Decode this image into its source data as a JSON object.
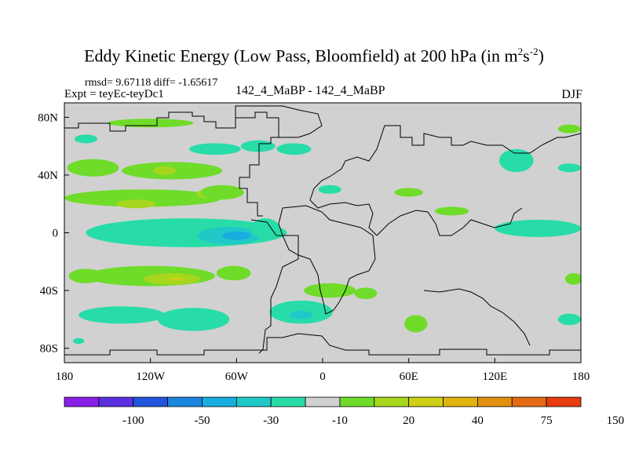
{
  "header": {
    "title": "Eddy Kinetic Energy (Low Pass, Bloomfield) at 200 hPa (in m",
    "title_sup1": "2",
    "title_mid": "s",
    "title_sup2": "-2",
    "title_end": ")",
    "stats": "rmsd= 9.67118 diff= -1.65617",
    "expt": "Expt = teyEc-teyDc1",
    "center_label": "142_4_MaBP - 142_4_MaBP",
    "season": "DJF"
  },
  "colors": {
    "land_background": "#d1d1d1",
    "outline": "#000000"
  },
  "chart_data": {
    "type": "heatmap",
    "title": "Eddy Kinetic Energy (Low Pass, Bloomfield) at 200 hPa (in m2s-2)",
    "xlabel": "",
    "ylabel": "",
    "xlim": [
      -180,
      180
    ],
    "ylim": [
      -90,
      90
    ],
    "x_ticks": [
      {
        "value": -180,
        "label": "180"
      },
      {
        "value": -120,
        "label": "120W"
      },
      {
        "value": -60,
        "label": "60W"
      },
      {
        "value": 0,
        "label": "0"
      },
      {
        "value": 60,
        "label": "60E"
      },
      {
        "value": 120,
        "label": "120E"
      },
      {
        "value": 180,
        "label": "180"
      }
    ],
    "y_ticks": [
      {
        "value": 80,
        "label": "80N"
      },
      {
        "value": 40,
        "label": "40N"
      },
      {
        "value": 0,
        "label": "0"
      },
      {
        "value": -40,
        "label": "40S"
      },
      {
        "value": -80,
        "label": "80S"
      }
    ],
    "colorbar": {
      "labels": [
        "-100",
        "-50",
        "-30",
        "-10",
        "20",
        "40",
        "75",
        "150"
      ],
      "colors": [
        "#8a20e8",
        "#5a30e0",
        "#2255dd",
        "#1a86e0",
        "#18aee0",
        "#20c8c8",
        "#28dca8",
        "#d1d1d1",
        "#6fdc2a",
        "#a6d61e",
        "#cfcf14",
        "#e0b40c",
        "#e49010",
        "#e46a14",
        "#e63c10"
      ]
    },
    "regions": [
      {
        "cat": 8,
        "lon": -120,
        "lat": 76,
        "rlon": 30,
        "rlat": 3
      },
      {
        "cat": 6,
        "lon": -165,
        "lat": 65,
        "rlon": 8,
        "rlat": 3
      },
      {
        "cat": 8,
        "lon": -160,
        "lat": 45,
        "rlon": 18,
        "rlat": 6
      },
      {
        "cat": 8,
        "lon": -105,
        "lat": 43,
        "rlon": 35,
        "rlat": 6
      },
      {
        "cat": 9,
        "lon": -110,
        "lat": 43,
        "rlon": 8,
        "rlat": 3
      },
      {
        "cat": 6,
        "lon": -75,
        "lat": 58,
        "rlon": 18,
        "rlat": 4
      },
      {
        "cat": 6,
        "lon": -45,
        "lat": 60,
        "rlon": 12,
        "rlat": 4
      },
      {
        "cat": 6,
        "lon": -20,
        "lat": 58,
        "rlon": 12,
        "rlat": 4
      },
      {
        "cat": 8,
        "lon": -125,
        "lat": 24,
        "rlon": 55,
        "rlat": 6
      },
      {
        "cat": 9,
        "lon": -130,
        "lat": 20,
        "rlon": 14,
        "rlat": 3
      },
      {
        "cat": 9,
        "lon": -80,
        "lat": 27,
        "rlon": 8,
        "rlat": 3
      },
      {
        "cat": 8,
        "lon": -70,
        "lat": 28,
        "rlon": 15,
        "rlat": 5
      },
      {
        "cat": 6,
        "lon": -95,
        "lat": 0,
        "rlon": 70,
        "rlat": 10
      },
      {
        "cat": 5,
        "lon": -65,
        "lat": -2,
        "rlon": 22,
        "rlat": 6
      },
      {
        "cat": 4,
        "lon": -60,
        "lat": -2,
        "rlon": 10,
        "rlat": 3
      },
      {
        "cat": 6,
        "lon": -40,
        "lat": 3,
        "rlon": 10,
        "rlat": 7
      },
      {
        "cat": 8,
        "lon": -120,
        "lat": -30,
        "rlon": 45,
        "rlat": 7
      },
      {
        "cat": 9,
        "lon": -105,
        "lat": -32,
        "rlon": 20,
        "rlat": 4
      },
      {
        "cat": 10,
        "lon": -102,
        "lat": -32,
        "rlon": 5,
        "rlat": 1
      },
      {
        "cat": 8,
        "lon": -165,
        "lat": -30,
        "rlon": 12,
        "rlat": 5
      },
      {
        "cat": 8,
        "lon": -62,
        "lat": -28,
        "rlon": 12,
        "rlat": 5
      },
      {
        "cat": 6,
        "lon": -140,
        "lat": -57,
        "rlon": 30,
        "rlat": 6
      },
      {
        "cat": 6,
        "lon": -90,
        "lat": -60,
        "rlon": 25,
        "rlat": 8
      },
      {
        "cat": 6,
        "lon": -15,
        "lat": -55,
        "rlon": 22,
        "rlat": 8
      },
      {
        "cat": 5,
        "lon": -15,
        "lat": -57,
        "rlon": 8,
        "rlat": 3
      },
      {
        "cat": 8,
        "lon": 5,
        "lat": -40,
        "rlon": 18,
        "rlat": 5
      },
      {
        "cat": 8,
        "lon": 30,
        "lat": -42,
        "rlon": 8,
        "rlat": 4
      },
      {
        "cat": 8,
        "lon": 65,
        "lat": -63,
        "rlon": 8,
        "rlat": 6
      },
      {
        "cat": 6,
        "lon": 5,
        "lat": 30,
        "rlon": 8,
        "rlat": 3
      },
      {
        "cat": 8,
        "lon": 60,
        "lat": 28,
        "rlon": 10,
        "rlat": 3
      },
      {
        "cat": 8,
        "lon": 90,
        "lat": 15,
        "rlon": 12,
        "rlat": 3
      },
      {
        "cat": 6,
        "lon": 135,
        "lat": 50,
        "rlon": 12,
        "rlat": 8
      },
      {
        "cat": 8,
        "lon": 172,
        "lat": 72,
        "rlon": 8,
        "rlat": 3
      },
      {
        "cat": 6,
        "lon": 150,
        "lat": 3,
        "rlon": 30,
        "rlat": 6
      },
      {
        "cat": 8,
        "lon": 175,
        "lat": -32,
        "rlon": 6,
        "rlat": 4
      },
      {
        "cat": 6,
        "lon": 172,
        "lat": 45,
        "rlon": 8,
        "rlat": 3
      },
      {
        "cat": 6,
        "lon": 172,
        "lat": -60,
        "rlon": 8,
        "rlat": 4
      },
      {
        "cat": 6,
        "lon": -170,
        "lat": -75,
        "rlon": 4,
        "rlat": 2
      }
    ]
  }
}
